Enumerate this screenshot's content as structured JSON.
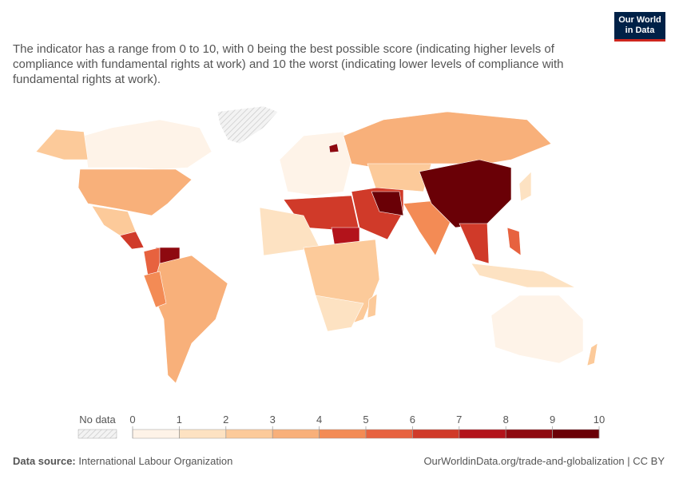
{
  "logo": {
    "line1": "Our World",
    "line2": "in Data"
  },
  "subtitle": "The indicator has a range from 0 to 10, with 0 being the best possible score (indicating higher levels of compliance with fundamental rights at work) and 10 the worst (indicating lower levels of compliance with fundamental rights at work).",
  "legend": {
    "no_data": "No data",
    "ticks": [
      0,
      1,
      2,
      3,
      4,
      5,
      6,
      7,
      8,
      9,
      10
    ],
    "colors": [
      "#fef3e8",
      "#fde2c2",
      "#fcca9a",
      "#f8b07a",
      "#f38b55",
      "#e7623f",
      "#d03a29",
      "#b3131b",
      "#8e0910",
      "#6a0006"
    ]
  },
  "footer": {
    "source_label": "Data source:",
    "source": "International Labour Organization",
    "url": "OurWorldinData.org/trade-and-globalization | CC BY"
  }
}
